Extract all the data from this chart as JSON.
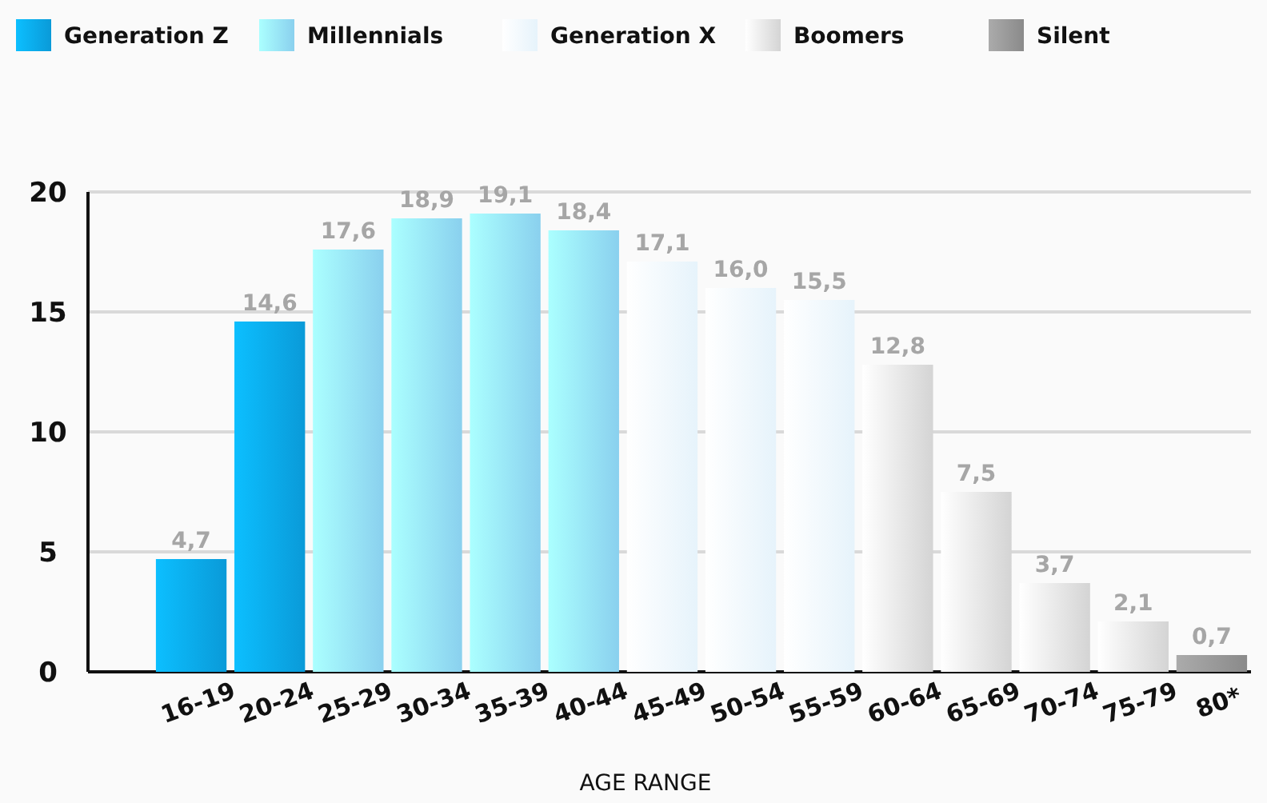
{
  "chart_data": {
    "type": "bar",
    "xlabel": "AGE RANGE",
    "categories": [
      "16-19",
      "20-24",
      "25-29",
      "30-34",
      "35-39",
      "40-44",
      "45-49",
      "50-54",
      "55-59",
      "60-64",
      "65-69",
      "70-74",
      "75-79",
      "80*"
    ],
    "series": [
      {
        "name": "Generation Z",
        "color": "#0a9ad8",
        "values": [
          4.7,
          14.6,
          null,
          null,
          null,
          null,
          null,
          null,
          null,
          null,
          null,
          null,
          null,
          null
        ],
        "value_labels": [
          "4,7",
          "14,6",
          null,
          null,
          null,
          null,
          null,
          null,
          null,
          null,
          null,
          null,
          null,
          null
        ]
      },
      {
        "name": "Millennials",
        "color": "#8ad0ee",
        "values": [
          null,
          null,
          17.6,
          18.9,
          19.1,
          18.4,
          null,
          null,
          null,
          null,
          null,
          null,
          null,
          null
        ],
        "value_labels": [
          null,
          null,
          "17,6",
          "18,9",
          "19,1",
          "18,4",
          null,
          null,
          null,
          null,
          null,
          null,
          null,
          null
        ]
      },
      {
        "name": "Generation X",
        "color": "#e6f3fb",
        "values": [
          null,
          null,
          null,
          null,
          null,
          null,
          17.1,
          16.0,
          15.5,
          null,
          null,
          null,
          null,
          null
        ],
        "value_labels": [
          null,
          null,
          null,
          null,
          null,
          null,
          "17,1",
          "16,0",
          "15,5",
          null,
          null,
          null,
          null,
          null
        ]
      },
      {
        "name": "Boomers",
        "color": "#d4d4d4",
        "values": [
          null,
          null,
          null,
          null,
          null,
          null,
          null,
          null,
          null,
          12.8,
          7.5,
          3.7,
          2.1,
          null
        ],
        "value_labels": [
          null,
          null,
          null,
          null,
          null,
          null,
          null,
          null,
          null,
          "12,8",
          "7,5",
          "3,7",
          "2,1",
          null
        ]
      },
      {
        "name": "Silent",
        "color": "#8a8a8a",
        "values": [
          null,
          null,
          null,
          null,
          null,
          null,
          null,
          null,
          null,
          null,
          null,
          null,
          null,
          0.7
        ],
        "value_labels": [
          null,
          null,
          null,
          null,
          null,
          null,
          null,
          null,
          null,
          null,
          null,
          null,
          null,
          "0,7"
        ]
      }
    ],
    "ylim": [
      0,
      20
    ],
    "yticks": [
      0,
      5,
      10,
      15,
      20
    ],
    "grid": "y",
    "legend": "top"
  }
}
